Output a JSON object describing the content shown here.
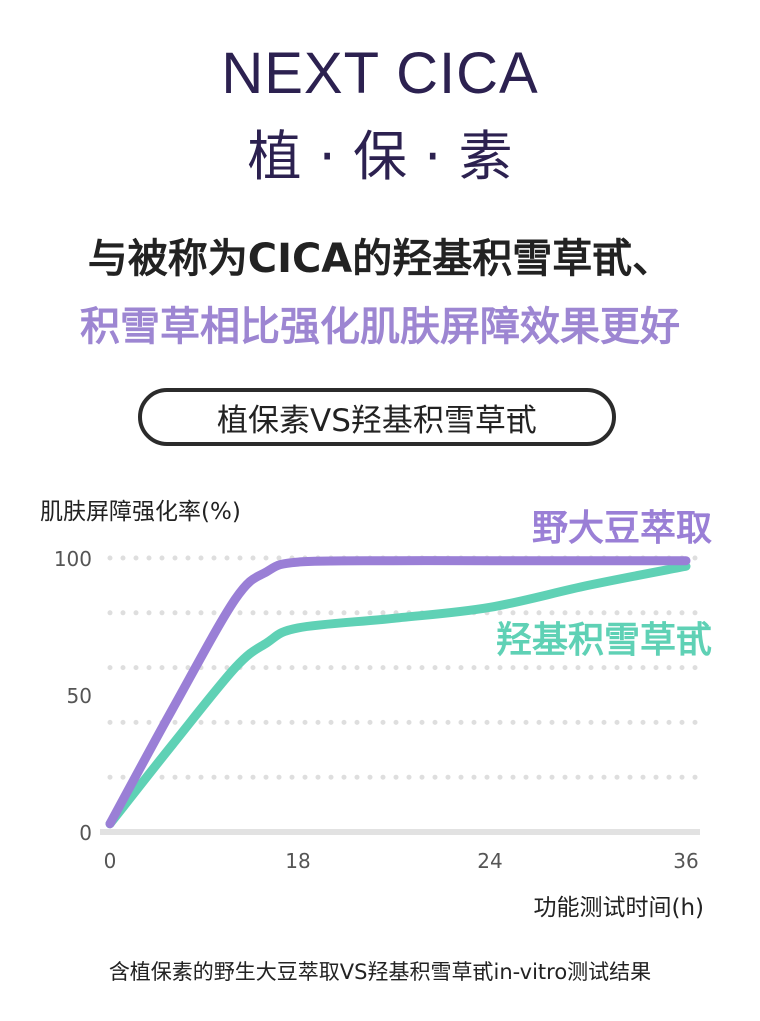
{
  "header": {
    "title_en": "NEXT CICA",
    "title_zh": "植 · 保 · 素"
  },
  "headline": {
    "line1": "与被称为CICA的羟基积雪草甙、",
    "line2": "积雪草相比强化肌肤屏障效果更好"
  },
  "comparison_label": "植保素VS羟基积雪草甙",
  "caption": "含植保素的野生大豆萃取VS羟基积雪草甙in-vitro测试结果",
  "colors": {
    "soy_series": "#9a7fd6",
    "madecassoside_series": "#5fd1b5",
    "headline_accent": "#9d86d2",
    "title": "#2c2150"
  },
  "chart_data": {
    "type": "line",
    "ylabel": "肌肤屏障强化率(%)",
    "xlabel": "功能测试时间(h)",
    "x_ticks": [
      "0",
      "18",
      "24",
      "36"
    ],
    "y_ticks": [
      "0",
      "50",
      "100"
    ],
    "ylim": [
      0,
      100
    ],
    "grid": "dotted horizontal",
    "series": [
      {
        "name": "野大豆萃取",
        "color": "#9a7fd6",
        "points": [
          [
            0,
            3
          ],
          [
            6,
            45
          ],
          [
            12,
            85
          ],
          [
            15,
            95
          ],
          [
            18,
            98.5
          ],
          [
            21,
            99
          ],
          [
            24,
            99
          ],
          [
            30,
            99
          ],
          [
            36,
            99
          ]
        ]
      },
      {
        "name": "羟基积雪草甙",
        "color": "#5fd1b5",
        "points": [
          [
            0,
            3
          ],
          [
            6,
            32
          ],
          [
            12,
            60
          ],
          [
            15,
            69
          ],
          [
            18,
            74.5
          ],
          [
            21,
            78
          ],
          [
            24,
            82
          ],
          [
            30,
            90
          ],
          [
            36,
            97
          ]
        ]
      }
    ]
  }
}
